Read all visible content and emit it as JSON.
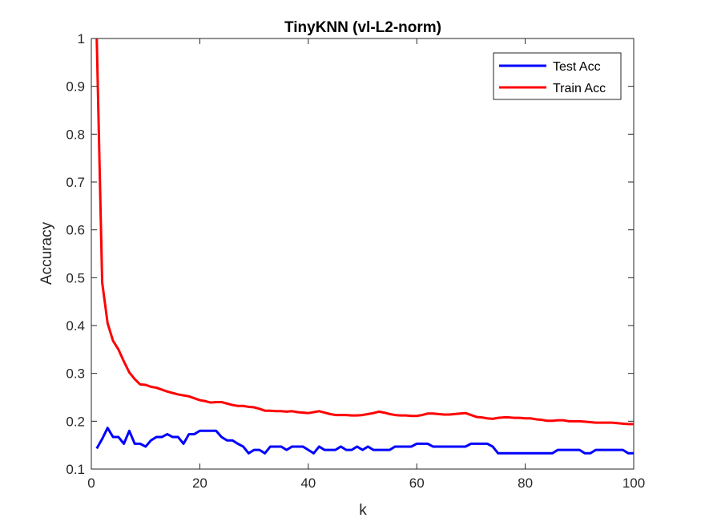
{
  "chart_data": {
    "type": "line",
    "title": "TinyKNN (vl-L2-norm)",
    "xlabel": "k",
    "ylabel": "Accuracy",
    "xlim": [
      0,
      100
    ],
    "ylim": [
      0.1,
      1
    ],
    "xticks": [
      0,
      20,
      40,
      60,
      80,
      100
    ],
    "xtick_labels": [
      "0",
      "20",
      "40",
      "60",
      "80",
      "100"
    ],
    "yticks": [
      0.1,
      0.2,
      0.3,
      0.4,
      0.5,
      0.6,
      0.7,
      0.8,
      0.9,
      1
    ],
    "ytick_labels": [
      "0.1",
      "0.2",
      "0.3",
      "0.4",
      "0.5",
      "0.6",
      "0.7",
      "0.8",
      "0.9",
      "1"
    ],
    "grid": false,
    "legend_position": "top-right",
    "x": [
      1,
      2,
      3,
      4,
      5,
      6,
      7,
      8,
      9,
      10,
      11,
      12,
      13,
      14,
      15,
      16,
      17,
      18,
      19,
      20,
      21,
      22,
      23,
      24,
      25,
      26,
      27,
      28,
      29,
      30,
      31,
      32,
      33,
      34,
      35,
      36,
      37,
      38,
      39,
      40,
      41,
      42,
      43,
      44,
      45,
      46,
      47,
      48,
      49,
      50,
      51,
      52,
      53,
      54,
      55,
      56,
      57,
      58,
      59,
      60,
      61,
      62,
      63,
      64,
      65,
      66,
      67,
      68,
      69,
      70,
      71,
      72,
      73,
      74,
      75,
      76,
      77,
      78,
      79,
      80,
      81,
      82,
      83,
      84,
      85,
      86,
      87,
      88,
      89,
      90,
      91,
      92,
      93,
      94,
      95,
      96,
      97,
      98,
      99,
      100
    ],
    "series": [
      {
        "name": "Test Acc",
        "color": "#0000ff",
        "values": [
          0.143,
          0.163,
          0.186,
          0.167,
          0.167,
          0.153,
          0.18,
          0.153,
          0.153,
          0.147,
          0.16,
          0.167,
          0.167,
          0.173,
          0.167,
          0.167,
          0.153,
          0.173,
          0.173,
          0.18,
          0.18,
          0.18,
          0.18,
          0.167,
          0.16,
          0.16,
          0.153,
          0.147,
          0.133,
          0.14,
          0.14,
          0.133,
          0.147,
          0.147,
          0.147,
          0.14,
          0.147,
          0.147,
          0.147,
          0.14,
          0.133,
          0.147,
          0.14,
          0.14,
          0.14,
          0.147,
          0.14,
          0.14,
          0.147,
          0.14,
          0.147,
          0.14,
          0.14,
          0.14,
          0.14,
          0.147,
          0.147,
          0.147,
          0.147,
          0.153,
          0.153,
          0.153,
          0.147,
          0.147,
          0.147,
          0.147,
          0.147,
          0.147,
          0.147,
          0.153,
          0.153,
          0.153,
          0.153,
          0.147,
          0.133,
          0.133,
          0.133,
          0.133,
          0.133,
          0.133,
          0.133,
          0.133,
          0.133,
          0.133,
          0.133,
          0.14,
          0.14,
          0.14,
          0.14,
          0.14,
          0.133,
          0.133,
          0.14,
          0.14,
          0.14,
          0.14,
          0.14,
          0.14,
          0.133,
          0.133
        ]
      },
      {
        "name": "Train Acc",
        "color": "#ff0000",
        "values": [
          1.0,
          0.49,
          0.405,
          0.368,
          0.35,
          0.325,
          0.302,
          0.288,
          0.277,
          0.276,
          0.272,
          0.27,
          0.266,
          0.262,
          0.259,
          0.256,
          0.254,
          0.252,
          0.248,
          0.244,
          0.242,
          0.239,
          0.24,
          0.24,
          0.237,
          0.234,
          0.232,
          0.232,
          0.23,
          0.229,
          0.226,
          0.222,
          0.222,
          0.221,
          0.221,
          0.22,
          0.221,
          0.219,
          0.218,
          0.217,
          0.219,
          0.221,
          0.218,
          0.215,
          0.213,
          0.213,
          0.213,
          0.212,
          0.212,
          0.213,
          0.215,
          0.217,
          0.22,
          0.218,
          0.215,
          0.213,
          0.212,
          0.212,
          0.211,
          0.211,
          0.213,
          0.216,
          0.216,
          0.215,
          0.214,
          0.214,
          0.215,
          0.216,
          0.217,
          0.213,
          0.209,
          0.208,
          0.206,
          0.205,
          0.207,
          0.208,
          0.208,
          0.207,
          0.207,
          0.206,
          0.206,
          0.204,
          0.203,
          0.201,
          0.201,
          0.202,
          0.202,
          0.2,
          0.2,
          0.2,
          0.199,
          0.198,
          0.197,
          0.197,
          0.197,
          0.197,
          0.196,
          0.195,
          0.194,
          0.194
        ]
      }
    ]
  }
}
